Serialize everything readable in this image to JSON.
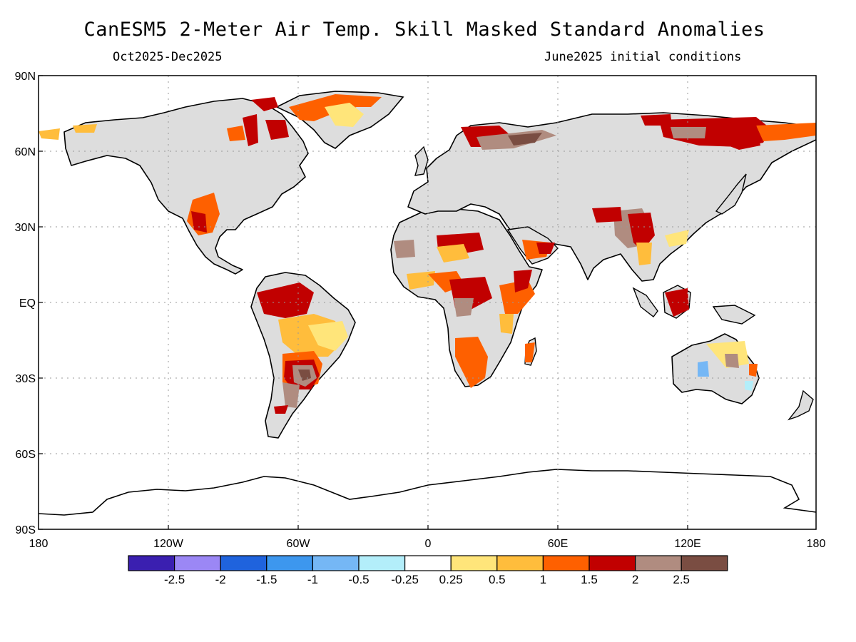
{
  "title": "CanESM5 2-Meter Air Temp. Skill Masked Standard Anomalies",
  "subtitle_left": "Oct2025-Dec2025",
  "subtitle_right": "June2025 initial conditions",
  "map": {
    "lat_labels": [
      "90N",
      "60N",
      "30N",
      "EQ",
      "30S",
      "60S",
      "90S"
    ],
    "lon_labels": [
      "180",
      "120W",
      "60W",
      "0",
      "60E",
      "120E",
      "180"
    ],
    "grid_style": "dotted",
    "masked_land_color": "#dddddd"
  },
  "colorbar": {
    "colors": [
      "#3a1fb0",
      "#9b87f5",
      "#1f63dd",
      "#3d97ee",
      "#75b7f5",
      "#b3eefa",
      "#ffffff",
      "#ffe57a",
      "#ffbd3c",
      "#fe6000",
      "#c10000",
      "#b08c80",
      "#7a4d42"
    ],
    "labels": [
      "-2.5",
      "-2",
      "-1.5",
      "-1",
      "-0.5",
      "-0.25",
      "0.25",
      "0.5",
      "1",
      "1.5",
      "2",
      "2.5"
    ]
  }
}
